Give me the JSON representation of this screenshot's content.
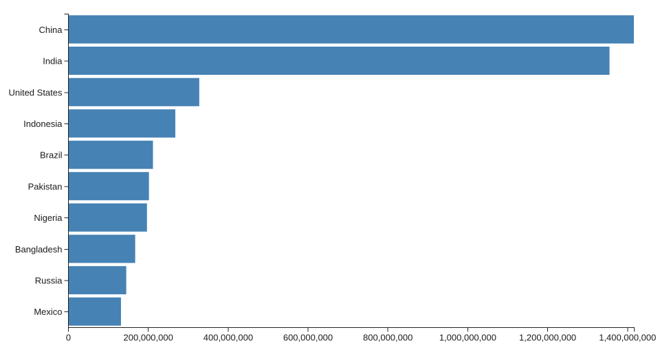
{
  "chart_data": {
    "type": "bar",
    "orientation": "horizontal",
    "title": "",
    "xlabel": "",
    "ylabel": "",
    "grid": false,
    "legend": null,
    "categories": [
      "China",
      "India",
      "United States",
      "Indonesia",
      "Brazil",
      "Pakistan",
      "Nigeria",
      "Bangladesh",
      "Russia",
      "Mexico"
    ],
    "values": [
      1415045928,
      1354051854,
      326766748,
      266794980,
      210867954,
      200813818,
      195875237,
      166368149,
      143964709,
      130759074
    ],
    "xlim": [
      0,
      1415045928
    ],
    "x_ticks": [
      0,
      200000000,
      400000000,
      600000000,
      800000000,
      1000000000,
      1200000000,
      1400000000
    ],
    "x_tick_labels": [
      "0",
      "200,000,000",
      "400,000,000",
      "600,000,000",
      "800,000,000",
      "1,000,000,000",
      "1,200,000,000",
      "1,400,000,000"
    ],
    "bar_color": "#4682b4",
    "axis_color": "#222222",
    "text_color": "#1a1a1a",
    "background_color": "#ffffff"
  }
}
